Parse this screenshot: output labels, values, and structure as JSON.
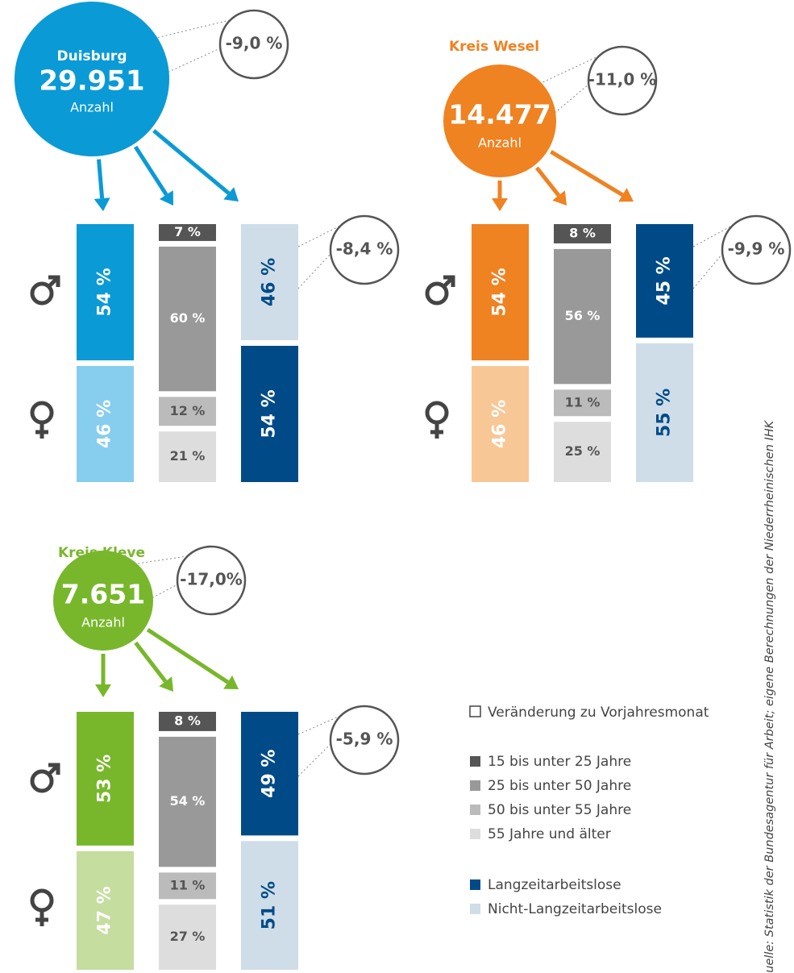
{
  "panels": [
    {
      "name": "Duisburg",
      "total": "29.951",
      "unit": "Anzahl",
      "change": "-9,0 %",
      "color": "#0a9ad6",
      "gender": [
        {
          "value": 54,
          "label": "54 %",
          "color": "#0a9ad6"
        },
        {
          "value": 46,
          "label": "46 %",
          "color": "#87cdee"
        }
      ],
      "age": [
        {
          "value": 7,
          "label": "7 %"
        },
        {
          "value": 60,
          "label": "60 %"
        },
        {
          "value": 12,
          "label": "12 %"
        },
        {
          "value": 21,
          "label": "21 %"
        }
      ],
      "longterm": [
        {
          "value": 46,
          "label": "46 %",
          "color": "#cfdde9"
        },
        {
          "value": 54,
          "label": "54 %",
          "color": "#004b87"
        }
      ],
      "longterm_change": "-8,4 %"
    },
    {
      "name": "Kreis Wesel",
      "total": "14.477",
      "unit": "Anzahl",
      "change": "-11,0 %",
      "color": "#ef8221",
      "gender": [
        {
          "value": 54,
          "label": "54 %",
          "color": "#ef8221"
        },
        {
          "value": 46,
          "label": "46 %",
          "color": "#f8c796"
        }
      ],
      "age": [
        {
          "value": 8,
          "label": "8 %"
        },
        {
          "value": 56,
          "label": "56 %"
        },
        {
          "value": 11,
          "label": "11 %"
        },
        {
          "value": 25,
          "label": "25 %"
        }
      ],
      "longterm": [
        {
          "value": 45,
          "label": "45 %",
          "color": "#004b87"
        },
        {
          "value": 55,
          "label": "55 %",
          "color": "#cfdde9"
        }
      ],
      "longterm_change": "-9,9 %"
    },
    {
      "name": "Kreis Kleve",
      "total": "7.651",
      "unit": "Anzahl",
      "change": "-17,0%",
      "color": "#78b72b",
      "gender": [
        {
          "value": 53,
          "label": "53 %",
          "color": "#78b72b"
        },
        {
          "value": 47,
          "label": "47 %",
          "color": "#c5dd9f"
        }
      ],
      "age": [
        {
          "value": 8,
          "label": "8 %"
        },
        {
          "value": 54,
          "label": "54 %"
        },
        {
          "value": 11,
          "label": "11 %"
        },
        {
          "value": 27,
          "label": "27 %"
        }
      ],
      "longterm": [
        {
          "value": 49,
          "label": "49 %",
          "color": "#004b87"
        },
        {
          "value": 51,
          "label": "51 %",
          "color": "#cfdde9"
        }
      ],
      "longterm_change": "-5,9 %"
    }
  ],
  "legend": {
    "change": "Veränderung zu Vorjahresmonat",
    "age": [
      {
        "label": "15 bis unter 25 Jahre",
        "color": "#555555"
      },
      {
        "label": "25 bis unter 50 Jahre",
        "color": "#999999"
      },
      {
        "label": "50 bis unter 55 Jahre",
        "color": "#bbbbbb"
      },
      {
        "label": "55 Jahre und älter",
        "color": "#dddddd"
      }
    ],
    "longterm": [
      {
        "label": "Langzeitarbeitslose",
        "color": "#004b87"
      },
      {
        "label": "Nicht-Langzeitarbeitslose",
        "color": "#cfdde9"
      }
    ]
  },
  "source": "Quelle: Statistik der Bundesagentur für Arbeit; eigene Berechnungen der Niederrheinischen IHK"
}
